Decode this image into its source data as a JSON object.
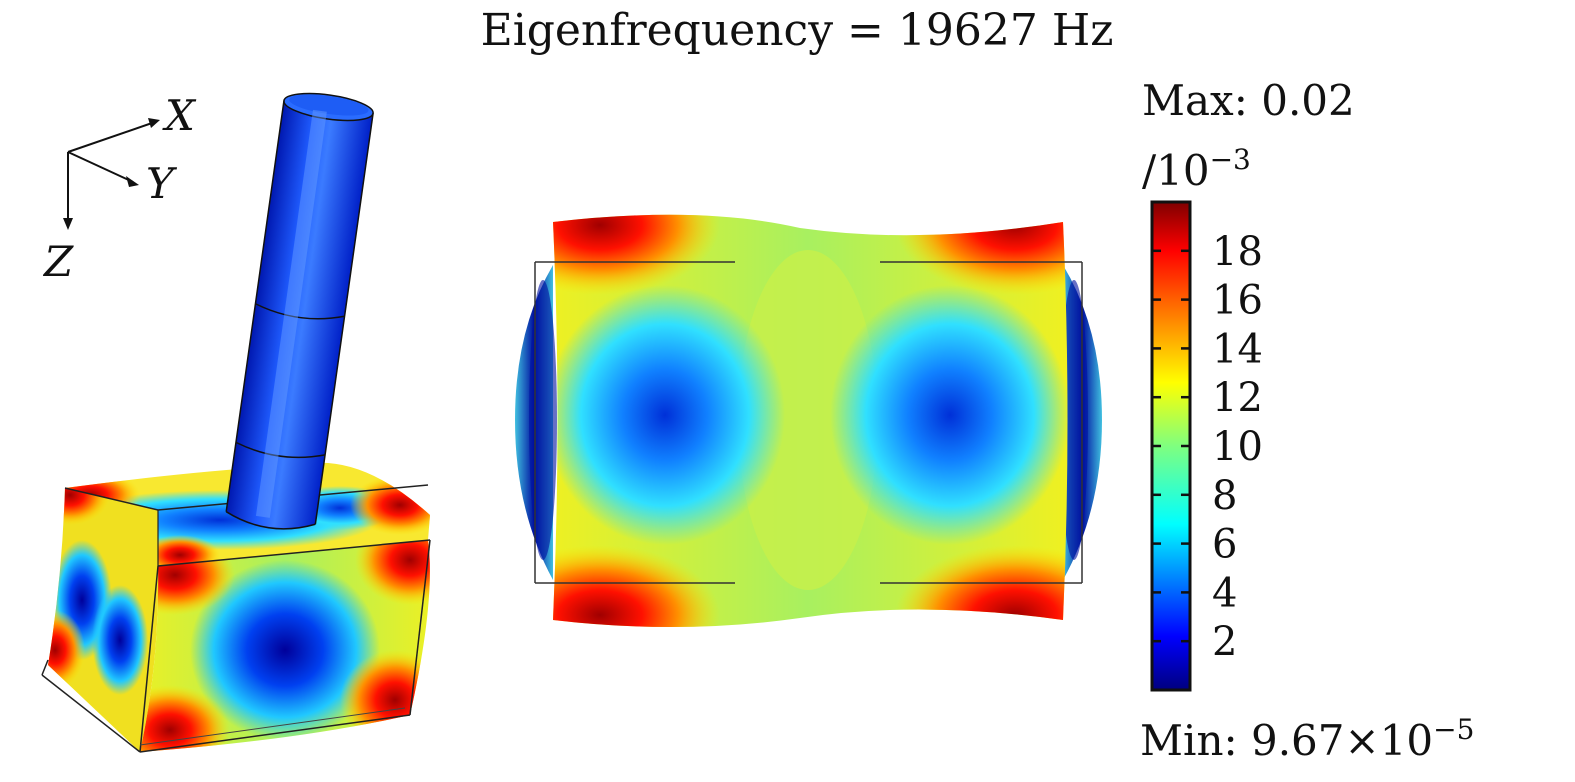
{
  "title": "Eigenfrequency = 19627 Hz",
  "axes_triad": {
    "x": "X",
    "y": "Y",
    "z": "Z"
  },
  "colorbar": {
    "max_label": "Max: 0.02",
    "scale_label": "/10",
    "scale_exponent": "−3",
    "min_label": "Min: 9.67×10",
    "min_exponent": "−5",
    "ticks": [
      {
        "value": 18,
        "label": "18"
      },
      {
        "value": 16,
        "label": "16"
      },
      {
        "value": 14,
        "label": "14"
      },
      {
        "value": 12,
        "label": "12"
      },
      {
        "value": 10,
        "label": "10"
      },
      {
        "value": 8,
        "label": "8"
      },
      {
        "value": 6,
        "label": "6"
      },
      {
        "value": 4,
        "label": "4"
      },
      {
        "value": 2,
        "label": "2"
      }
    ],
    "range": [
      0,
      20
    ],
    "colormap": [
      "#00007f",
      "#0000ff",
      "#007fff",
      "#00ffff",
      "#7fff7f",
      "#ffff00",
      "#ff7f00",
      "#ff0000",
      "#7f0000"
    ]
  },
  "icons": {
    "left_view": "3d-transducer-mode-shape",
    "right_view": "top-view-mode-shape"
  }
}
